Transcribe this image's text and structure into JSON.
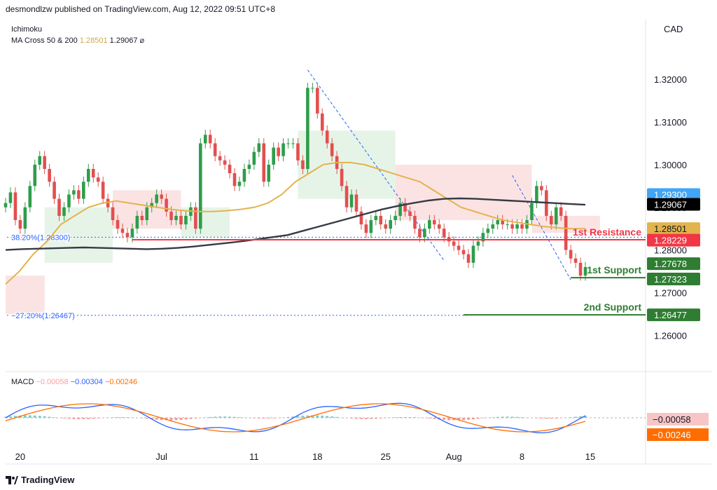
{
  "header": {
    "publisher_line": "desmondlzw published on TradingView.com, Aug 12, 2022 09:51 UTC+8"
  },
  "indicators": {
    "ichimoku_label": "Ichimoku",
    "ma_cross_label": "MA Cross 50 & 200",
    "ma50_value": "1.28501",
    "ma200_value": "1.29067",
    "hide_icon": "eye-off-icon"
  },
  "macd": {
    "label": "MACD",
    "hist": "−0.00058",
    "macd": "−0.00304",
    "signal": "−0.00246",
    "hist_tag": "−0.00058",
    "signal_tag": "−0.00246"
  },
  "footer": {
    "brand": "TradingView"
  },
  "colors": {
    "up": "#26a69a",
    "down": "#ef5350",
    "ma50": "#e3b34c",
    "ma200": "#363a45",
    "resistance": "#f23645",
    "support": "#2e7d32",
    "macd": "#2962ff",
    "signal": "#ff6d00"
  },
  "chart_data": {
    "type": "candlestick",
    "currency": "CAD",
    "y_ticks": [
      "1.32000",
      "1.31000",
      "1.30000",
      "1.29000",
      "1.28000",
      "1.27000",
      "1.26000"
    ],
    "ylim": [
      1.252,
      1.334
    ],
    "x_ticks": [
      {
        "label": "20",
        "idx": 3
      },
      {
        "label": "Jul",
        "idx": 32
      },
      {
        "label": "11",
        "idx": 51
      },
      {
        "label": "18",
        "idx": 64
      },
      {
        "label": "25",
        "idx": 78
      },
      {
        "label": "Aug",
        "idx": 92
      },
      {
        "label": "8",
        "idx": 106
      },
      {
        "label": "15",
        "idx": 120
      }
    ],
    "fib_levels": [
      {
        "label": "38.20%(1.28300)",
        "value": 1.283
      },
      {
        "label": "−27.20%(1.26467)",
        "value": 1.26467
      }
    ],
    "levels": [
      {
        "name": "1st Resistance",
        "value": 1.2824,
        "start_idx": 26,
        "kind": "resistance"
      },
      {
        "name": "1st Support",
        "value": 1.2735,
        "start_idx": 116,
        "kind": "support"
      },
      {
        "name": "2nd Support",
        "value": 1.2648,
        "start_idx": 94,
        "kind": "support"
      }
    ],
    "price_tags": [
      {
        "value": "1.29300",
        "y": 1.293,
        "bg": "#42a5f5"
      },
      {
        "value": "1.29067",
        "y": 1.2907,
        "bg": "#000000"
      },
      {
        "value": "1.28501",
        "y": 1.285,
        "bg": "#e3b34c"
      },
      {
        "value": "1.28229",
        "y": 1.2823,
        "bg": "#f23645"
      },
      {
        "value": "1.27678",
        "y": 1.2768,
        "bg": "#2e7d32"
      },
      {
        "value": "1.27323",
        "y": 1.2732,
        "bg": "#2e7d32"
      },
      {
        "value": "1.26477",
        "y": 1.2648,
        "bg": "#2e7d32"
      }
    ],
    "closes": [
      1.291,
      1.2935,
      1.287,
      1.285,
      1.29,
      1.295,
      1.3,
      1.302,
      1.299,
      1.296,
      1.292,
      1.288,
      1.29,
      1.293,
      1.294,
      1.292,
      1.296,
      1.299,
      1.297,
      1.296,
      1.292,
      1.29,
      1.287,
      1.285,
      1.284,
      1.283,
      1.285,
      1.288,
      1.287,
      1.29,
      1.291,
      1.293,
      1.292,
      1.289,
      1.287,
      1.288,
      1.286,
      1.288,
      1.29,
      1.285,
      1.305,
      1.307,
      1.305,
      1.302,
      1.301,
      1.3,
      1.298,
      1.295,
      1.296,
      1.299,
      1.3,
      1.303,
      1.305,
      1.296,
      1.3,
      1.304,
      1.302,
      1.305,
      1.305,
      1.305,
      1.301,
      1.299,
      1.318,
      1.318,
      1.312,
      1.308,
      1.305,
      1.302,
      1.299,
      1.295,
      1.29,
      1.293,
      1.289,
      1.286,
      1.284,
      1.287,
      1.288,
      1.286,
      1.285,
      1.287,
      1.288,
      1.291,
      1.289,
      1.288,
      1.285,
      1.283,
      1.285,
      1.287,
      1.286,
      1.285,
      1.283,
      1.282,
      1.281,
      1.28,
      1.279,
      1.277,
      1.281,
      1.282,
      1.284,
      1.285,
      1.286,
      1.287,
      1.286,
      1.286,
      1.285,
      1.286,
      1.285,
      1.287,
      1.291,
      1.295,
      1.294,
      1.288,
      1.286,
      1.29,
      1.288,
      1.28,
      1.278,
      1.277,
      1.274,
      1.276
    ],
    "ma50": [
      1.272,
      1.275,
      1.279,
      1.282,
      1.286,
      1.288,
      1.29,
      1.291,
      1.2915,
      1.291,
      1.2905,
      1.29,
      1.2895,
      1.2892,
      1.289,
      1.289,
      1.2892,
      1.2895,
      1.29,
      1.291,
      1.293,
      1.296,
      1.298,
      1.3,
      1.3005,
      1.3005,
      1.3,
      1.299,
      1.298,
      1.297,
      1.296,
      1.294,
      1.292,
      1.29,
      1.289,
      1.288,
      1.287,
      1.2865,
      1.286,
      1.2855,
      1.2852,
      1.285,
      1.285
    ],
    "ma200": [
      1.28,
      1.2802,
      1.2803,
      1.2804,
      1.2805,
      1.2806,
      1.2805,
      1.2804,
      1.2803,
      1.2802,
      1.2803,
      1.2805,
      1.2808,
      1.2812,
      1.2816,
      1.282,
      1.2825,
      1.283,
      1.2835,
      1.2845,
      1.2855,
      1.2865,
      1.2875,
      1.2885,
      1.2895,
      1.2903,
      1.291,
      1.2916,
      1.292,
      1.2921,
      1.292,
      1.2918,
      1.2916,
      1.2914,
      1.2912,
      1.291,
      1.2908,
      1.2906
    ]
  }
}
